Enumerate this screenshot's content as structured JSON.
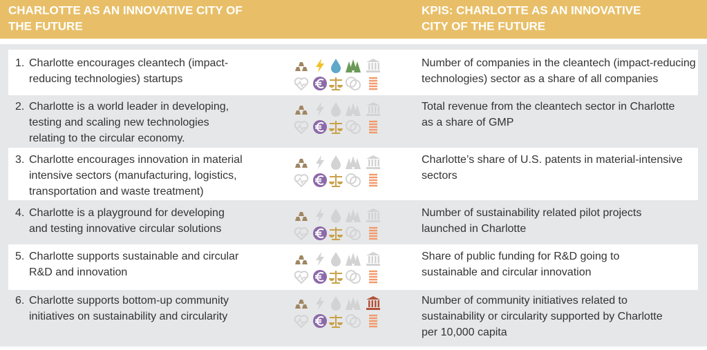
{
  "header": {
    "left": [
      "CHARLOTTE AS AN INNOVATIVE CITY OF",
      "THE FUTURE"
    ],
    "right": [
      "KPIS: CHARLOTTE AS AN INNOVATIVE",
      "CITY OF THE FUTURE"
    ]
  },
  "rows": [
    {
      "number": "1.",
      "goal": [
        "Charlotte encourages cleantech (impact-",
        "reducing technologies) startups"
      ],
      "kpi": [
        "Number of companies in the cleantech (impact-reducing",
        "technologies) sector as a share of all companies"
      ]
    },
    {
      "number": "2.",
      "goal": [
        "Charlotte is a world leader in developing,",
        "testing and scaling new technologies",
        "relating to the circular economy."
      ],
      "kpi": [
        "Total revenue from the cleantech sector in Charlotte",
        "as a share of GMP"
      ]
    },
    {
      "number": "3.",
      "goal": [
        "Charlotte encourages innovation in material",
        "intensive sectors (manufacturing, logistics,",
        "transportation and waste treatment)"
      ],
      "kpi": [
        "Charlotte’s share of U.S. patents in material-intensive",
        "sectors"
      ]
    },
    {
      "number": "4.",
      "goal": [
        "Charlotte is a playground for developing",
        "and testing innovative circular solutions"
      ],
      "kpi": [
        "Number of sustainability related pilot projects",
        "launched in Charlotte"
      ]
    },
    {
      "number": "5.",
      "goal": [
        "Charlotte supports sustainable and circular",
        "R&D and innovation"
      ],
      "kpi": [
        "Share of public funding for R&D going to",
        "sustainable and circular innovation"
      ]
    },
    {
      "number": "6.",
      "goal": [
        "Charlotte supports bottom-up community",
        "initiatives on sustainability and circularity"
      ],
      "kpi": [
        "Number of community initiatives related to",
        "sustainability or circularity supported by Charlotte",
        "per 10,000 capita"
      ]
    }
  ]
}
